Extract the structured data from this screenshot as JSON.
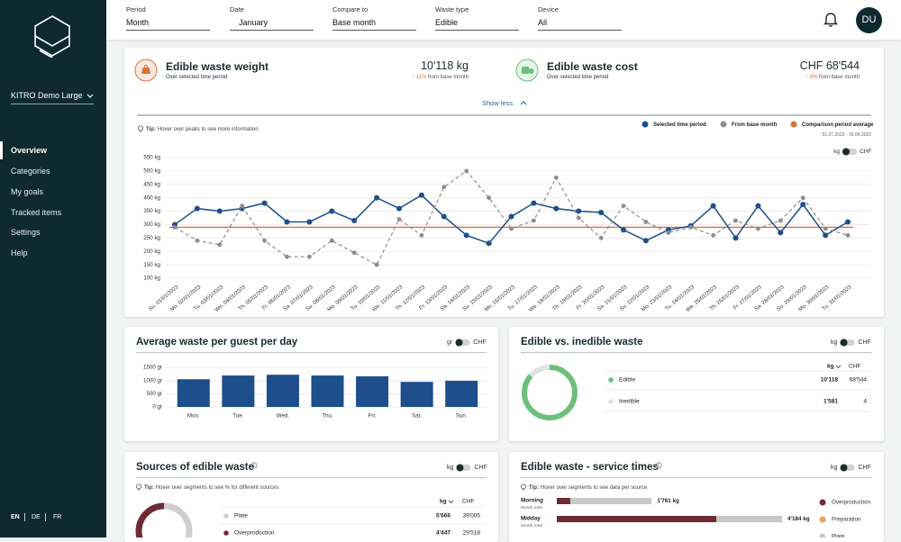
{
  "sidebar": {
    "org": "KITRO Demo Large",
    "nav": [
      "Overview",
      "Categories",
      "My goals",
      "Tracked items",
      "Settings",
      "Help"
    ],
    "languages": [
      "EN",
      "DE",
      "FR"
    ]
  },
  "filters": [
    {
      "label": "Period",
      "value": "Month"
    },
    {
      "label": "Date",
      "value": "January"
    },
    {
      "label": "Compare to",
      "value": "Base month"
    },
    {
      "label": "Waste type",
      "value": "Edible"
    },
    {
      "label": "Device",
      "value": "All"
    }
  ],
  "user_initials": "DU",
  "kpis": [
    {
      "title": "Edible waste weight",
      "subtitle": "Over selected time period",
      "value": "10'118 kg",
      "change": "↑ 11%",
      "change_note": "from base month"
    },
    {
      "title": "Edible waste cost",
      "subtitle": "Over selected time period",
      "value": "CHF 68'544",
      "change": "↑ 9%",
      "change_note": "from base month"
    }
  ],
  "toggle_link": "Show less",
  "chart_data": [
    {
      "type": "line",
      "tip_label": "Tip:",
      "tip": "Hover over peaks to see more information",
      "units": [
        "kg",
        "CHF"
      ],
      "comparison_dates": "01.07.2022 - 30.06.2022",
      "x": [
        "Su. 01/01/2023",
        "Mo. 02/01/2023",
        "Tu. 03/01/2023",
        "We. 04/01/2023",
        "Th. 05/01/2023",
        "Fr. 06/01/2023",
        "Sa. 07/01/2023",
        "Su. 08/01/2023",
        "Mo. 09/01/2023",
        "Tu. 10/01/2023",
        "We. 11/01/2023",
        "Th. 12/01/2023",
        "Fr. 13/01/2023",
        "Sa. 14/01/2023",
        "Su. 15/01/2023",
        "Mo. 16/01/2023",
        "Tu. 17/01/2023",
        "We. 18/01/2023",
        "Th. 19/01/2023",
        "Fr. 20/01/2023",
        "Sa. 21/01/2023",
        "Su. 22/01/2023",
        "Mo. 23/01/2023",
        "Tu. 24/01/2023",
        "We. 25/01/2023",
        "Th. 26/01/2023",
        "Fr. 27/01/2023",
        "Sa. 28/01/2023",
        "Su. 29/01/2023",
        "Mo. 30/01/2023",
        "Tu. 31/01/2023"
      ],
      "series": [
        {
          "name": "Selected time period",
          "color": "#1f4e8c",
          "values": [
            300,
            360,
            350,
            360,
            380,
            310,
            310,
            350,
            315,
            400,
            360,
            410,
            330,
            260,
            230,
            330,
            380,
            360,
            350,
            345,
            280,
            240,
            280,
            295,
            370,
            250,
            370,
            270,
            375,
            260,
            310
          ]
        },
        {
          "name": "From base month",
          "color": "#8d8d8d",
          "dashed": true,
          "values": [
            290,
            240,
            225,
            370,
            240,
            180,
            180,
            240,
            195,
            150,
            320,
            260,
            440,
            500,
            400,
            285,
            315,
            475,
            325,
            250,
            370,
            310,
            270,
            290,
            260,
            315,
            285,
            315,
            400,
            285,
            260
          ]
        }
      ],
      "reference_line": {
        "name": "Comparison period average",
        "color": "#d9713a",
        "value": 290
      },
      "ylim": [
        100,
        550
      ],
      "yticks": [
        {
          "value": 100,
          "label": "100 kg"
        },
        {
          "value": 150,
          "label": "150 kg"
        },
        {
          "value": 200,
          "label": "200 kg"
        },
        {
          "value": 250,
          "label": "250 kg"
        },
        {
          "value": 300,
          "label": "300 kg"
        },
        {
          "value": 350,
          "label": "350 kg"
        },
        {
          "value": 400,
          "label": "400 kg"
        },
        {
          "value": 450,
          "label": "450 kg"
        },
        {
          "value": 500,
          "label": "500 kg"
        },
        {
          "value": 550,
          "label": "550 kg"
        }
      ],
      "grid": true
    },
    {
      "type": "bar",
      "title": "Average waste per guest per day",
      "units": [
        "gr",
        "CHF"
      ],
      "categories": [
        "Mon.",
        "Tue.",
        "Wed.",
        "Thu.",
        "Fri.",
        "Sat.",
        "Sun."
      ],
      "values": [
        1050,
        1190,
        1220,
        1190,
        1160,
        950,
        990
      ],
      "color": "#1f4e8c",
      "ylim": [
        0,
        1500
      ],
      "yticks": [
        {
          "value": 0,
          "label": "0 gr"
        },
        {
          "value": 500,
          "label": "500 gr"
        },
        {
          "value": 1000,
          "label": "1000 gr"
        },
        {
          "value": 1500,
          "label": "1500 gr"
        }
      ],
      "grid": true
    }
  ],
  "edible_vs_inedible": {
    "title": "Edible vs. inedible waste",
    "units": [
      "kg",
      "CHF"
    ],
    "columns": [
      "kg",
      "CHF"
    ],
    "categories": [
      "Edible",
      "Inedible"
    ],
    "colors": [
      "#6dbf7b",
      "#e2e2e2"
    ],
    "values": [
      10118,
      1581
    ],
    "value_labels": [
      "10'118",
      "1'581"
    ],
    "chf": [
      "68'544",
      "4"
    ]
  },
  "sources": {
    "title": "Sources of edible waste",
    "units": [
      "kg",
      "CHF"
    ],
    "tip_label": "Tip:",
    "tip": "Hover over segments to see % for different sources",
    "columns": [
      "kg",
      "CHF"
    ],
    "categories": [
      "Plate",
      "Overproduction"
    ],
    "colors": [
      "#cfcfcf",
      "#6e2a35"
    ],
    "values": [
      5666,
      4447
    ],
    "value_labels": [
      "5'666",
      "4'447"
    ],
    "chf": [
      "39'005",
      "29'518"
    ]
  },
  "service_times": {
    "title": "Edible waste - service times",
    "units": [
      "kg",
      "CHF"
    ],
    "tip_label": "Tip:",
    "tip": "Hover over segments to see data per source",
    "categories": [
      "Morning",
      "Midday"
    ],
    "notes": [
      "Month total",
      "Month total"
    ],
    "total_labels": [
      "1'761 kg",
      "4'184 kg"
    ],
    "series": [
      {
        "name": "Overproduction",
        "color": "#6e2a35",
        "values": [
          250,
          2962
        ]
      },
      {
        "name": "Preparation",
        "color": "#e8a25c",
        "values": [
          0,
          0
        ]
      },
      {
        "name": "Plate",
        "color": "#c8c8c8",
        "values": [
          1511,
          1222
        ]
      }
    ]
  }
}
